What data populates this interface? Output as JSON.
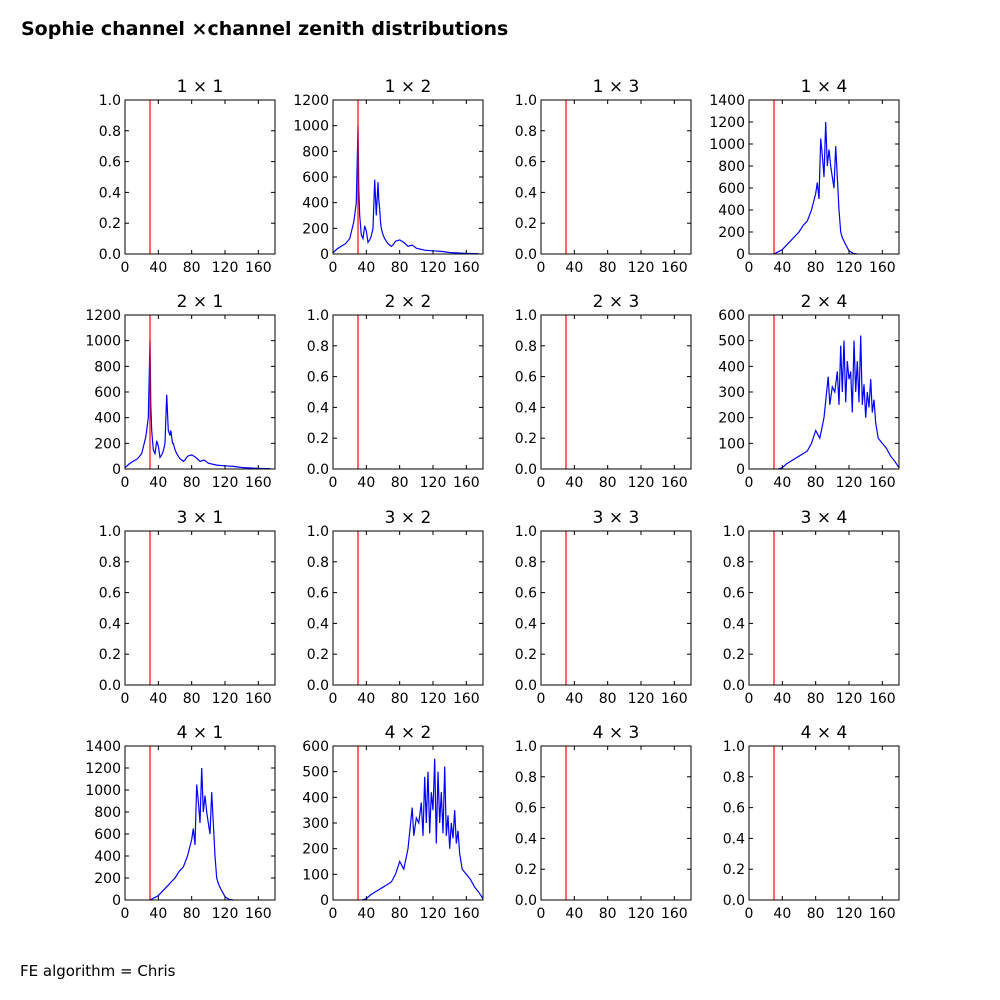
{
  "title": "Sophie channel ×channel zenith distributions",
  "footer": "FE algorithm = Chris",
  "colors": {
    "series": "#0000ff",
    "cut_line": "#ff0000",
    "axes": "#000000"
  },
  "chart_data": [
    {
      "type": "line",
      "title": "1 × 1",
      "xlim": [
        0,
        180
      ],
      "ylim": [
        0,
        1.0
      ],
      "xticks": [
        0,
        40,
        80,
        120,
        160
      ],
      "yticks": [
        0,
        0.2,
        0.4,
        0.6,
        0.8,
        1.0
      ],
      "cut_x": 30,
      "series": []
    },
    {
      "type": "line",
      "title": "1 × 2",
      "xlim": [
        0,
        180
      ],
      "ylim": [
        0,
        1200
      ],
      "xticks": [
        0,
        40,
        80,
        120,
        160
      ],
      "yticks": [
        0,
        200,
        400,
        600,
        800,
        1000,
        1200
      ],
      "cut_x": 30,
      "series": [
        {
          "name": "1x2",
          "x": [
            0,
            5,
            10,
            15,
            20,
            25,
            28,
            30,
            31,
            32,
            34,
            36,
            38,
            40,
            42,
            44,
            46,
            48,
            50,
            52,
            54,
            55,
            56,
            57,
            58,
            60,
            62,
            64,
            66,
            68,
            70,
            72,
            75,
            80,
            85,
            90,
            95,
            100,
            110,
            120,
            130,
            140,
            150,
            160,
            170,
            175
          ],
          "y": [
            10,
            40,
            60,
            80,
            120,
            250,
            400,
            1000,
            500,
            300,
            150,
            120,
            220,
            180,
            90,
            110,
            140,
            200,
            580,
            300,
            560,
            420,
            350,
            250,
            200,
            150,
            120,
            100,
            80,
            70,
            60,
            70,
            100,
            110,
            90,
            60,
            70,
            45,
            30,
            25,
            20,
            12,
            8,
            5,
            3,
            2
          ]
        }
      ]
    },
    {
      "type": "line",
      "title": "1 × 3",
      "xlim": [
        0,
        180
      ],
      "ylim": [
        0,
        1.0
      ],
      "xticks": [
        0,
        40,
        80,
        120,
        160
      ],
      "yticks": [
        0,
        0.2,
        0.4,
        0.6,
        0.8,
        1.0
      ],
      "cut_x": 30,
      "series": []
    },
    {
      "type": "line",
      "title": "1 × 4",
      "xlim": [
        0,
        180
      ],
      "ylim": [
        0,
        1400
      ],
      "xticks": [
        0,
        40,
        80,
        120,
        160
      ],
      "yticks": [
        0,
        200,
        400,
        600,
        800,
        1000,
        1200,
        1400
      ],
      "cut_x": 30,
      "series": [
        {
          "name": "1x4",
          "x": [
            30,
            35,
            40,
            45,
            50,
            55,
            60,
            65,
            70,
            75,
            80,
            82,
            84,
            86,
            88,
            90,
            92,
            94,
            96,
            98,
            100,
            102,
            104,
            106,
            108,
            110,
            112,
            115,
            120,
            125,
            130
          ],
          "y": [
            0,
            20,
            40,
            80,
            120,
            160,
            200,
            260,
            300,
            400,
            550,
            650,
            500,
            1050,
            900,
            700,
            1200,
            800,
            950,
            800,
            700,
            600,
            980,
            700,
            400,
            200,
            150,
            100,
            30,
            5,
            0
          ]
        }
      ]
    },
    {
      "type": "line",
      "title": "2 × 1",
      "xlim": [
        0,
        180
      ],
      "ylim": [
        0,
        1200
      ],
      "xticks": [
        0,
        40,
        80,
        120,
        160
      ],
      "yticks": [
        0,
        200,
        400,
        600,
        800,
        1000,
        1200
      ],
      "cut_x": 30,
      "series": [
        {
          "name": "2x1",
          "x": [
            0,
            5,
            10,
            15,
            20,
            25,
            28,
            30,
            31,
            32,
            34,
            36,
            38,
            40,
            42,
            44,
            46,
            48,
            50,
            52,
            54,
            55,
            56,
            57,
            58,
            60,
            62,
            64,
            66,
            68,
            70,
            72,
            75,
            80,
            85,
            90,
            95,
            100,
            110,
            120,
            130,
            140,
            150,
            160,
            170,
            175
          ],
          "y": [
            10,
            40,
            60,
            80,
            120,
            250,
            400,
            1000,
            500,
            300,
            150,
            120,
            220,
            180,
            90,
            110,
            140,
            200,
            580,
            300,
            260,
            300,
            250,
            200,
            200,
            150,
            120,
            100,
            80,
            70,
            60,
            70,
            100,
            110,
            90,
            60,
            70,
            45,
            30,
            25,
            20,
            12,
            8,
            5,
            3,
            2
          ]
        }
      ]
    },
    {
      "type": "line",
      "title": "2 × 2",
      "xlim": [
        0,
        180
      ],
      "ylim": [
        0,
        1.0
      ],
      "xticks": [
        0,
        40,
        80,
        120,
        160
      ],
      "yticks": [
        0,
        0.2,
        0.4,
        0.6,
        0.8,
        1.0
      ],
      "cut_x": 30,
      "series": []
    },
    {
      "type": "line",
      "title": "2 × 3",
      "xlim": [
        0,
        180
      ],
      "ylim": [
        0,
        1.0
      ],
      "xticks": [
        0,
        40,
        80,
        120,
        160
      ],
      "yticks": [
        0,
        0.2,
        0.4,
        0.6,
        0.8,
        1.0
      ],
      "cut_x": 30,
      "series": []
    },
    {
      "type": "line",
      "title": "2 × 4",
      "xlim": [
        0,
        180
      ],
      "ylim": [
        0,
        600
      ],
      "xticks": [
        0,
        40,
        80,
        120,
        160
      ],
      "yticks": [
        0,
        100,
        200,
        300,
        400,
        500,
        600
      ],
      "cut_x": 30,
      "series": [
        {
          "name": "2x4",
          "x": [
            35,
            40,
            45,
            50,
            55,
            60,
            65,
            70,
            75,
            80,
            85,
            90,
            95,
            97,
            100,
            103,
            106,
            108,
            110,
            112,
            114,
            116,
            118,
            120,
            122,
            124,
            126,
            128,
            130,
            132,
            134,
            136,
            138,
            140,
            142,
            144,
            146,
            148,
            150,
            152,
            155,
            160,
            165,
            170,
            175,
            180
          ],
          "y": [
            0,
            5,
            20,
            30,
            40,
            50,
            60,
            70,
            100,
            150,
            120,
            200,
            360,
            250,
            320,
            300,
            380,
            250,
            480,
            300,
            500,
            260,
            420,
            350,
            380,
            220,
            500,
            300,
            420,
            260,
            520,
            250,
            330,
            200,
            300,
            240,
            350,
            220,
            270,
            180,
            120,
            100,
            80,
            50,
            30,
            5
          ]
        }
      ]
    },
    {
      "type": "line",
      "title": "3 × 1",
      "xlim": [
        0,
        180
      ],
      "ylim": [
        0,
        1.0
      ],
      "xticks": [
        0,
        40,
        80,
        120,
        160
      ],
      "yticks": [
        0,
        0.2,
        0.4,
        0.6,
        0.8,
        1.0
      ],
      "cut_x": 30,
      "series": []
    },
    {
      "type": "line",
      "title": "3 × 2",
      "xlim": [
        0,
        180
      ],
      "ylim": [
        0,
        1.0
      ],
      "xticks": [
        0,
        40,
        80,
        120,
        160
      ],
      "yticks": [
        0,
        0.2,
        0.4,
        0.6,
        0.8,
        1.0
      ],
      "cut_x": 30,
      "series": []
    },
    {
      "type": "line",
      "title": "3 × 3",
      "xlim": [
        0,
        180
      ],
      "ylim": [
        0,
        1.0
      ],
      "xticks": [
        0,
        40,
        80,
        120,
        160
      ],
      "yticks": [
        0,
        0.2,
        0.4,
        0.6,
        0.8,
        1.0
      ],
      "cut_x": 30,
      "series": []
    },
    {
      "type": "line",
      "title": "3 × 4",
      "xlim": [
        0,
        180
      ],
      "ylim": [
        0,
        1.0
      ],
      "xticks": [
        0,
        40,
        80,
        120,
        160
      ],
      "yticks": [
        0,
        0.2,
        0.4,
        0.6,
        0.8,
        1.0
      ],
      "cut_x": 30,
      "series": []
    },
    {
      "type": "line",
      "title": "4 × 1",
      "xlim": [
        0,
        180
      ],
      "ylim": [
        0,
        1400
      ],
      "xticks": [
        0,
        40,
        80,
        120,
        160
      ],
      "yticks": [
        0,
        200,
        400,
        600,
        800,
        1000,
        1200,
        1400
      ],
      "cut_x": 30,
      "series": [
        {
          "name": "4x1",
          "x": [
            30,
            35,
            40,
            45,
            50,
            55,
            60,
            65,
            70,
            75,
            80,
            82,
            84,
            86,
            88,
            90,
            92,
            94,
            96,
            98,
            100,
            102,
            104,
            106,
            108,
            110,
            112,
            115,
            120,
            125,
            130
          ],
          "y": [
            0,
            20,
            40,
            80,
            120,
            160,
            200,
            260,
            300,
            400,
            550,
            650,
            500,
            1050,
            900,
            700,
            1200,
            800,
            950,
            800,
            700,
            600,
            980,
            700,
            400,
            200,
            150,
            100,
            30,
            5,
            0
          ]
        }
      ]
    },
    {
      "type": "line",
      "title": "4 × 2",
      "xlim": [
        0,
        180
      ],
      "ylim": [
        0,
        600
      ],
      "xticks": [
        0,
        40,
        80,
        120,
        160
      ],
      "yticks": [
        0,
        100,
        200,
        300,
        400,
        500,
        600
      ],
      "cut_x": 30,
      "series": [
        {
          "name": "4x2",
          "x": [
            35,
            40,
            45,
            50,
            55,
            60,
            65,
            70,
            75,
            80,
            85,
            90,
            95,
            97,
            100,
            103,
            106,
            108,
            110,
            112,
            114,
            116,
            118,
            120,
            122,
            124,
            126,
            128,
            130,
            132,
            134,
            136,
            138,
            140,
            142,
            144,
            146,
            148,
            150,
            152,
            155,
            160,
            165,
            170,
            175,
            180
          ],
          "y": [
            0,
            5,
            20,
            30,
            40,
            50,
            60,
            70,
            100,
            150,
            120,
            200,
            360,
            250,
            320,
            300,
            380,
            250,
            480,
            300,
            500,
            260,
            420,
            350,
            550,
            220,
            500,
            300,
            420,
            260,
            520,
            250,
            330,
            200,
            300,
            240,
            350,
            220,
            270,
            180,
            120,
            100,
            80,
            50,
            30,
            5
          ]
        }
      ]
    },
    {
      "type": "line",
      "title": "4 × 3",
      "xlim": [
        0,
        180
      ],
      "ylim": [
        0,
        1.0
      ],
      "xticks": [
        0,
        40,
        80,
        120,
        160
      ],
      "yticks": [
        0,
        0.2,
        0.4,
        0.6,
        0.8,
        1.0
      ],
      "cut_x": 30,
      "series": []
    },
    {
      "type": "line",
      "title": "4 × 4",
      "xlim": [
        0,
        180
      ],
      "ylim": [
        0,
        1.0
      ],
      "xticks": [
        0,
        40,
        80,
        120,
        160
      ],
      "yticks": [
        0,
        0.2,
        0.4,
        0.6,
        0.8,
        1.0
      ],
      "cut_x": 30,
      "series": []
    }
  ]
}
